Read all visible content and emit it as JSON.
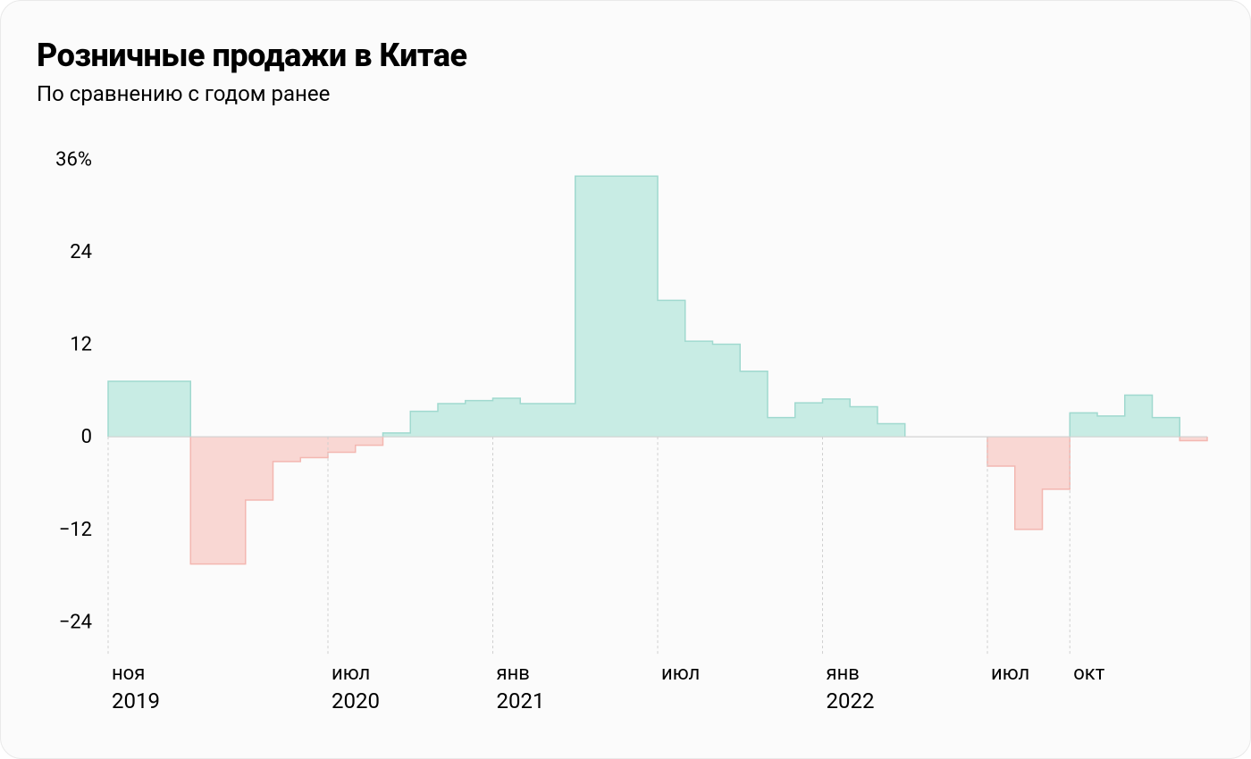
{
  "title": "Розничные продажи в Китае",
  "subtitle": "По сравнению с годом ранее",
  "chart": {
    "type": "step-bar",
    "background_color": "#fbfbfb",
    "border_color": "#e9e9e9",
    "positive_fill": "#c8ece4",
    "positive_stroke": "#a0d9cf",
    "negative_fill": "#f9d7d3",
    "negative_stroke": "#f3b7b1",
    "gridline_color": "#d0d0d0",
    "dashed_gridline_color": "#cfcfcf",
    "y": {
      "min": -28,
      "max": 38,
      "ticks": [
        -24,
        -12,
        0,
        12,
        24,
        36
      ],
      "tick_labels": [
        "−24",
        "−12",
        "0",
        "12",
        "24",
        "36%"
      ]
    },
    "x_labels": [
      {
        "index": 0,
        "month": "ноя",
        "year": "2019"
      },
      {
        "index": 8,
        "month": "июл",
        "year": "2020"
      },
      {
        "index": 14,
        "month": "янв",
        "year": "2021"
      },
      {
        "index": 20,
        "month": "июл",
        "year": ""
      },
      {
        "index": 26,
        "month": "янв",
        "year": "2022"
      },
      {
        "index": 32,
        "month": "июл",
        "year": ""
      },
      {
        "index": 35,
        "month": "окт",
        "year": ""
      }
    ],
    "x_vertical_rule_indices": [
      0,
      8,
      14,
      20,
      26,
      32,
      35
    ],
    "values": [
      7.2,
      7.2,
      7.2,
      -16.5,
      -16.5,
      -8.2,
      -3.2,
      -2.7,
      -2.0,
      -1.1,
      0.5,
      3.3,
      4.3,
      4.7,
      5.0,
      4.3,
      4.3,
      33.8,
      33.8,
      33.8,
      17.7,
      12.4,
      12.0,
      8.5,
      2.5,
      4.4,
      4.9,
      3.9,
      1.7,
      null,
      null,
      null,
      -3.8,
      -12.0,
      -6.8,
      3.1,
      2.7,
      5.4,
      2.5,
      -0.5
    ],
    "title_fontsize": 36,
    "subtitle_fontsize": 24,
    "axis_label_fontsize": 22,
    "year_label_fontsize": 24
  }
}
